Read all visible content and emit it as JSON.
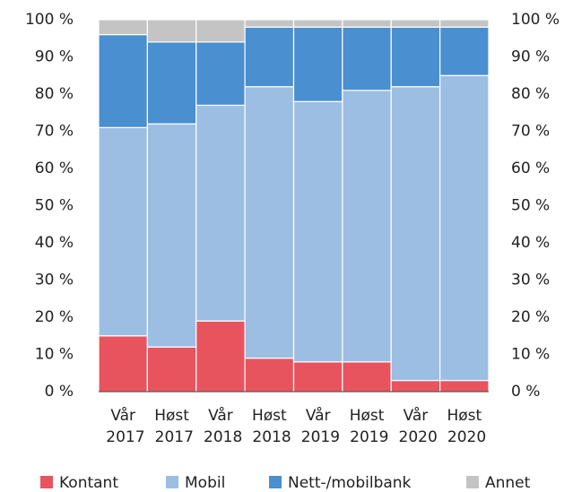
{
  "chart_data": {
    "type": "stacked_bar",
    "categories": [
      "Vår 2017",
      "Høst 2017",
      "Vår 2018",
      "Høst 2018",
      "Vår 2019",
      "Høst 2019",
      "Vår 2020",
      "Høst 2020"
    ],
    "series": [
      {
        "name": "Kontant",
        "color": "#e8545e",
        "values": [
          15,
          12,
          19,
          9,
          8,
          8,
          3,
          3
        ]
      },
      {
        "name": "Mobil",
        "color": "#9dbee3",
        "values": [
          56,
          60,
          58,
          73,
          70,
          73,
          79,
          82
        ]
      },
      {
        "name": "Nett-/mobilbank",
        "color": "#4a8fd0",
        "values": [
          25,
          22,
          17,
          16,
          20,
          17,
          16,
          13
        ]
      },
      {
        "name": "Annet",
        "color": "#c4c4c4",
        "values": [
          4,
          6,
          6,
          2,
          2,
          2,
          2,
          2
        ]
      }
    ],
    "ylim": [
      0,
      100
    ],
    "yticks": [
      {
        "value": 0,
        "label": "0 %"
      },
      {
        "value": 10,
        "label": "10 %"
      },
      {
        "value": 20,
        "label": "20 %"
      },
      {
        "value": 30,
        "label": "30 %"
      },
      {
        "value": 40,
        "label": "40 %"
      },
      {
        "value": 50,
        "label": "50 %"
      },
      {
        "value": 60,
        "label": "60 %"
      },
      {
        "value": 70,
        "label": "70 %"
      },
      {
        "value": 80,
        "label": "80 %"
      },
      {
        "value": 90,
        "label": "90 %"
      },
      {
        "value": 100,
        "label": "100 %"
      }
    ],
    "y2lim": [
      0,
      100
    ],
    "y2ticks": [
      {
        "value": 0,
        "label": "0 %"
      },
      {
        "value": 10,
        "label": "10 %"
      },
      {
        "value": 20,
        "label": "20 %"
      },
      {
        "value": 30,
        "label": "30 %"
      },
      {
        "value": 40,
        "label": "40 %"
      },
      {
        "value": 50,
        "label": "50 %"
      },
      {
        "value": 60,
        "label": "60 %"
      },
      {
        "value": 70,
        "label": "70 %"
      },
      {
        "value": 80,
        "label": "80 %"
      },
      {
        "value": 90,
        "label": "90 %"
      },
      {
        "value": 100,
        "label": "100 %"
      }
    ],
    "legend": "bottom"
  }
}
